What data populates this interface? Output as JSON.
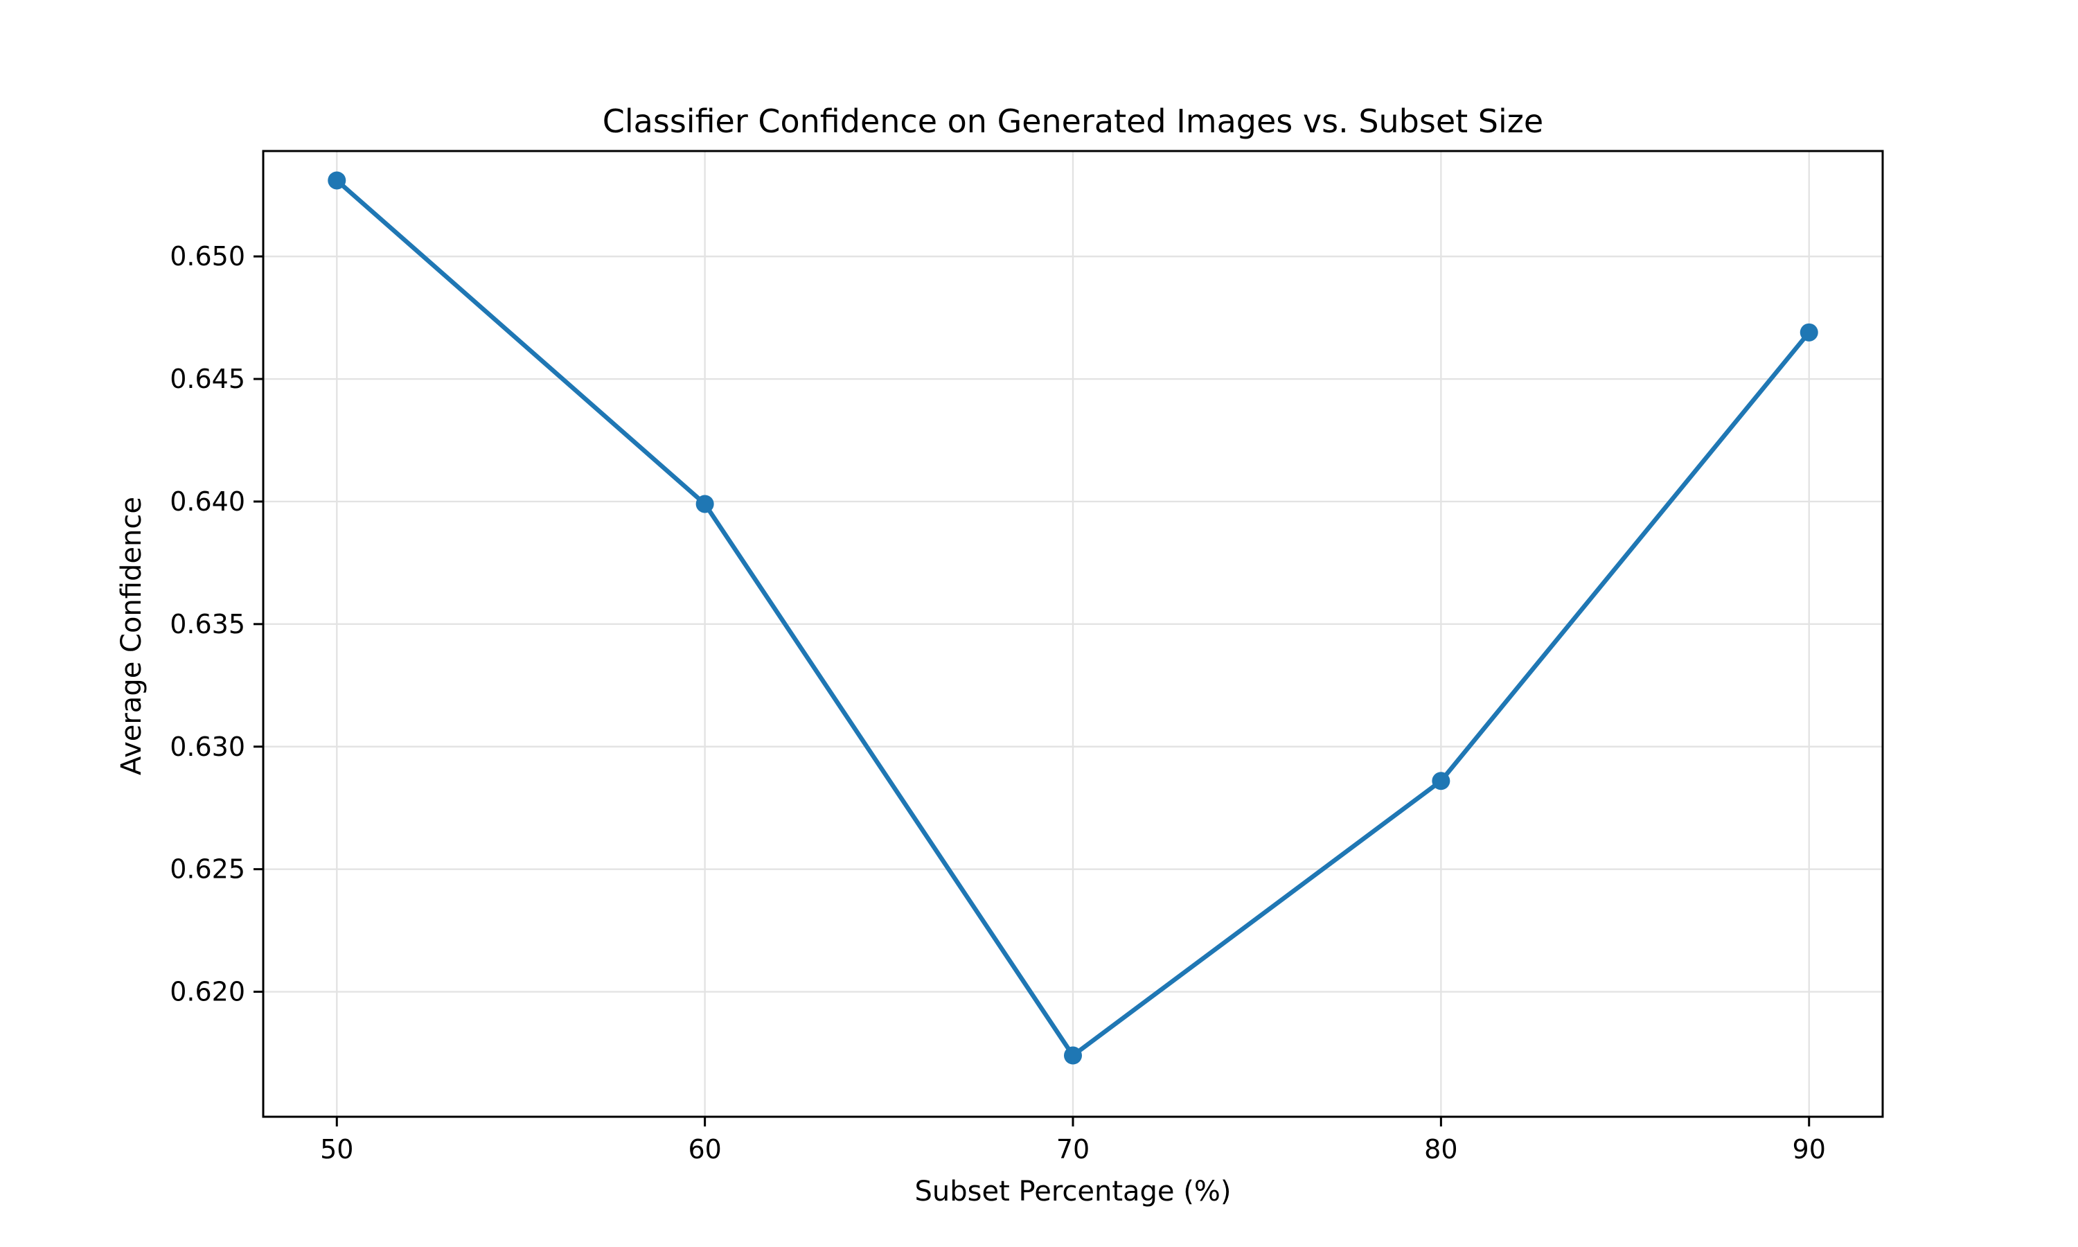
{
  "chart_data": {
    "type": "line",
    "title": "Classifier Confidence on Generated Images vs. Subset Size",
    "xlabel": "Subset Percentage (%)",
    "ylabel": "Average Confidence",
    "x": [
      50,
      60,
      70,
      80,
      90
    ],
    "series": [
      {
        "values": [
          0.6531,
          0.6399,
          0.6174,
          0.6286,
          0.6469
        ],
        "color": "#1f77b4"
      }
    ],
    "xticks": [
      "50",
      "60",
      "70",
      "80",
      "90"
    ],
    "yticks": [
      "0.620",
      "0.625",
      "0.630",
      "0.635",
      "0.640",
      "0.645",
      "0.650"
    ],
    "xlim": [
      48,
      92
    ],
    "ylim": [
      0.6149,
      0.6543
    ],
    "grid": true,
    "marker": "circle"
  }
}
